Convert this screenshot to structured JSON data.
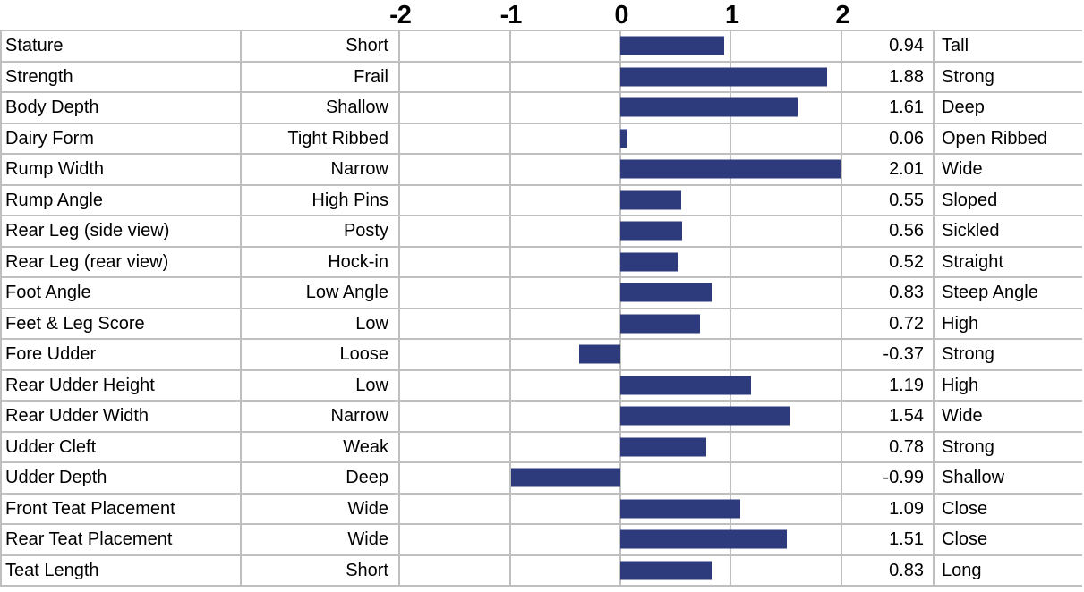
{
  "chart_data": {
    "type": "bar",
    "title": "",
    "orientation": "horizontal",
    "bar_color": "#2d3a7b",
    "gridline_color": "#bfbfbf",
    "axis": {
      "xlim": [
        -2,
        2
      ],
      "ticks": [
        -2,
        -1,
        0,
        1,
        2
      ],
      "tick_labels": [
        "-2",
        "-1",
        "0",
        "1",
        "2"
      ],
      "position": "top",
      "grid": "vertical"
    },
    "rows": [
      {
        "trait": "Stature",
        "low": "Short",
        "value": 0.94,
        "value_label": "0.94",
        "high": "Tall"
      },
      {
        "trait": "Strength",
        "low": "Frail",
        "value": 1.88,
        "value_label": "1.88",
        "high": "Strong"
      },
      {
        "trait": "Body Depth",
        "low": "Shallow",
        "value": 1.61,
        "value_label": "1.61",
        "high": "Deep"
      },
      {
        "trait": "Dairy Form",
        "low": "Tight Ribbed",
        "value": 0.06,
        "value_label": "0.06",
        "high": "Open Ribbed"
      },
      {
        "trait": "Rump Width",
        "low": "Narrow",
        "value": 2.01,
        "value_label": "2.01",
        "high": "Wide"
      },
      {
        "trait": "Rump Angle",
        "low": "High Pins",
        "value": 0.55,
        "value_label": "0.55",
        "high": "Sloped"
      },
      {
        "trait": "Rear Leg (side view)",
        "low": "Posty",
        "value": 0.56,
        "value_label": "0.56",
        "high": "Sickled"
      },
      {
        "trait": "Rear Leg (rear view)",
        "low": "Hock-in",
        "value": 0.52,
        "value_label": "0.52",
        "high": "Straight"
      },
      {
        "trait": "Foot Angle",
        "low": "Low Angle",
        "value": 0.83,
        "value_label": "0.83",
        "high": "Steep Angle"
      },
      {
        "trait": "Feet & Leg Score",
        "low": "Low",
        "value": 0.72,
        "value_label": "0.72",
        "high": "High"
      },
      {
        "trait": "Fore Udder",
        "low": "Loose",
        "value": -0.37,
        "value_label": "-0.37",
        "high": "Strong"
      },
      {
        "trait": "Rear Udder Height",
        "low": "Low",
        "value": 1.19,
        "value_label": "1.19",
        "high": "High"
      },
      {
        "trait": "Rear Udder Width",
        "low": "Narrow",
        "value": 1.54,
        "value_label": "1.54",
        "high": "Wide"
      },
      {
        "trait": "Udder Cleft",
        "low": "Weak",
        "value": 0.78,
        "value_label": "0.78",
        "high": "Strong"
      },
      {
        "trait": "Udder Depth",
        "low": "Deep",
        "value": -0.99,
        "value_label": "-0.99",
        "high": "Shallow"
      },
      {
        "trait": "Front Teat Placement",
        "low": "Wide",
        "value": 1.09,
        "value_label": "1.09",
        "high": "Close"
      },
      {
        "trait": "Rear Teat Placement",
        "low": "Wide",
        "value": 1.51,
        "value_label": "1.51",
        "high": "Close"
      },
      {
        "trait": "Teat Length",
        "low": "Short",
        "value": 0.83,
        "value_label": "0.83",
        "high": "Long"
      }
    ]
  }
}
